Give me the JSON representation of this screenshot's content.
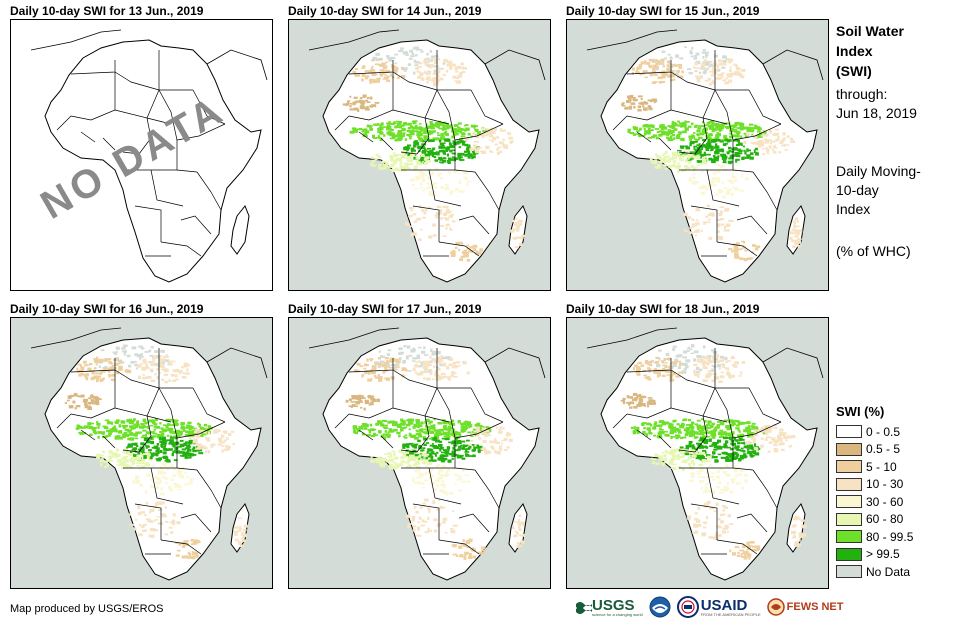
{
  "panels": [
    {
      "title": "Daily 10-day SWI for 13 Jun., 2019",
      "has_data": false,
      "overlay": "NO DATA",
      "variant": 0
    },
    {
      "title": "Daily 10-day SWI for 14 Jun., 2019",
      "has_data": true,
      "variant": 1
    },
    {
      "title": "Daily 10-day SWI for 15 Jun., 2019",
      "has_data": true,
      "variant": 2
    },
    {
      "title": "Daily 10-day SWI for 16 Jun., 2019",
      "has_data": true,
      "variant": 3
    },
    {
      "title": "Daily 10-day SWI for 17 Jun., 2019",
      "has_data": true,
      "variant": 4
    },
    {
      "title": "Daily 10-day SWI for 18 Jun., 2019",
      "has_data": true,
      "variant": 5
    }
  ],
  "side": {
    "title1": "Soil Water",
    "title2": "Index",
    "title3": "(SWI)",
    "through_label": "through:",
    "through_date": "Jun 18, 2019",
    "desc1": "Daily Moving-",
    "desc2": "10-day",
    "desc3": "Index",
    "units": "(% of WHC)"
  },
  "legend": {
    "title": "SWI (%)",
    "items": [
      {
        "label": "0 - 0.5",
        "color": "#ffffff"
      },
      {
        "label": "0.5 - 5",
        "color": "#d9b77e"
      },
      {
        "label": "5 - 10",
        "color": "#efcf9d"
      },
      {
        "label": "10 - 30",
        "color": "#f7e3c3"
      },
      {
        "label": "30 - 60",
        "color": "#fbf7d3"
      },
      {
        "label": "60 - 80",
        "color": "#e7f7b1"
      },
      {
        "label": "80 - 99.5",
        "color": "#6fe02a"
      },
      {
        "label": "> 99.5",
        "color": "#23b10f"
      },
      {
        "label": "No Data",
        "color": "#d3dcd6"
      }
    ]
  },
  "colors": {
    "ocean": "#d3dcd6",
    "land": "#ffffff",
    "border": "#000000",
    "nodata_text": "#8a8a8a"
  },
  "credit": "Map produced by USGS/EROS",
  "logos": {
    "usgs": "USGS",
    "usgs_tagline": "science for a changing world",
    "usaid": "USAID",
    "usaid_tagline": "FROM THE AMERICAN PEOPLE",
    "fews": "FEWS NET"
  }
}
